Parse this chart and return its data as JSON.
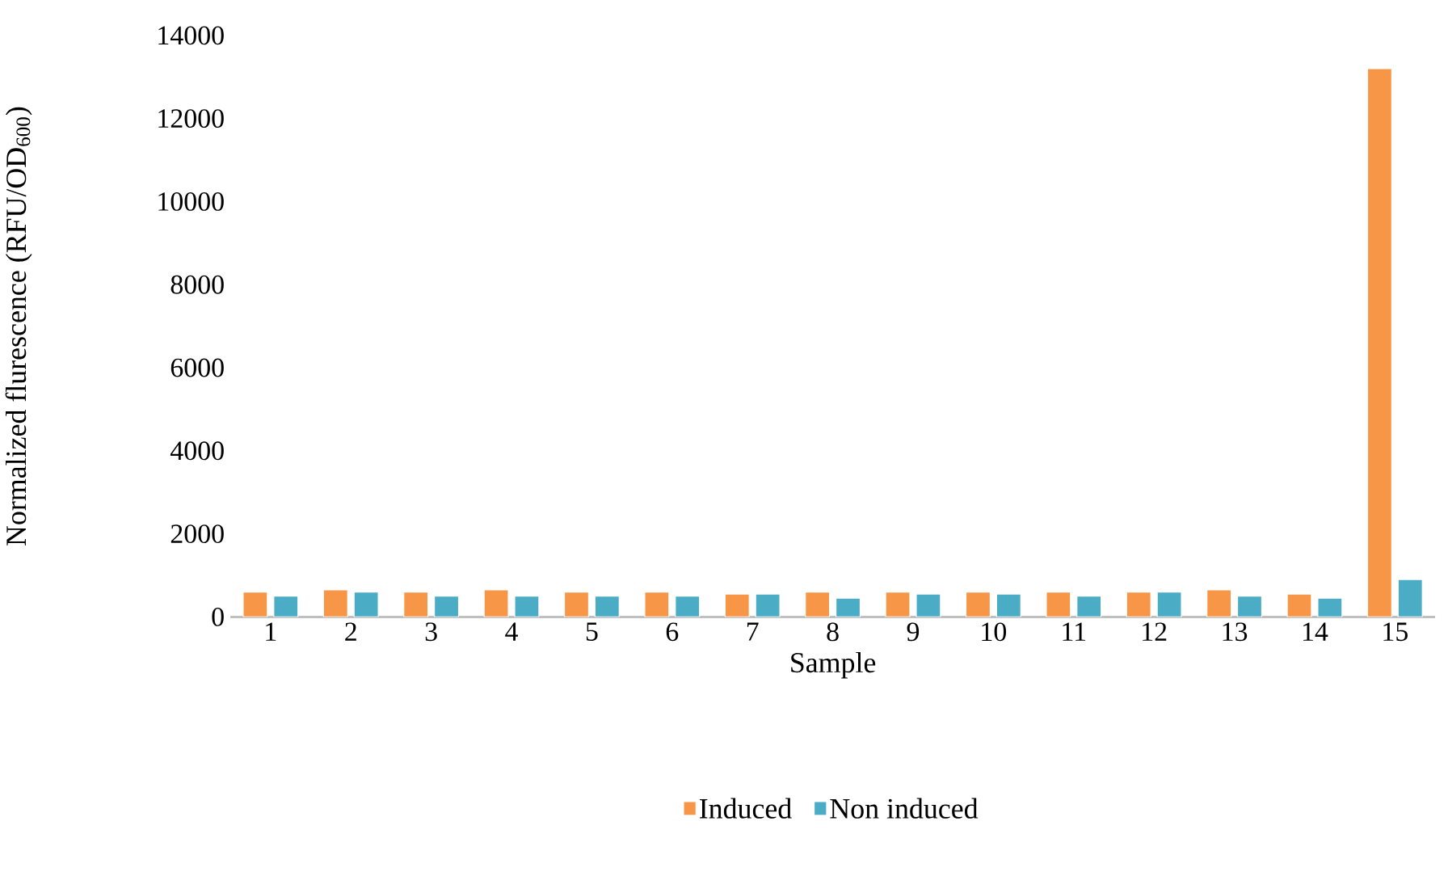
{
  "chart_data": {
    "type": "bar",
    "xlabel": "Sample",
    "ylabel": "Normalized flurescence (RFU/OD$_{600}$)",
    "categories": [
      "1",
      "2",
      "3",
      "4",
      "5",
      "6",
      "7",
      "8",
      "9",
      "10",
      "11",
      "12",
      "13",
      "14",
      "15"
    ],
    "series": [
      {
        "name": "Induced",
        "color": "#f79646",
        "values": [
          600,
          650,
          600,
          650,
          600,
          600,
          550,
          600,
          600,
          600,
          600,
          600,
          650,
          550,
          13200
        ]
      },
      {
        "name": "Non induced",
        "color": "#4bacc6",
        "values": [
          500,
          600,
          500,
          500,
          500,
          500,
          550,
          450,
          550,
          550,
          500,
          600,
          500,
          450,
          900
        ]
      }
    ],
    "ylim": [
      0,
      14000
    ],
    "yticks": [
      0,
      2000,
      4000,
      6000,
      8000,
      10000,
      12000,
      14000
    ],
    "grid": false,
    "legend": "bottom"
  }
}
